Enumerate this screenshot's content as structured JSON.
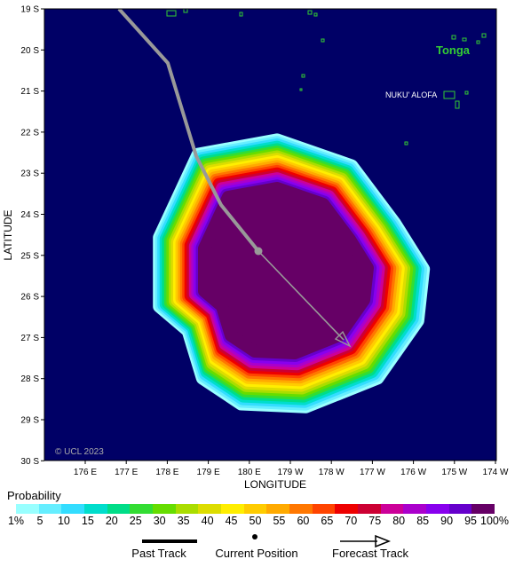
{
  "map": {
    "lat_labels": [
      "19 S",
      "20 S",
      "21 S",
      "22 S",
      "23 S",
      "24 S",
      "25 S",
      "26 S",
      "27 S",
      "28 S",
      "29 S",
      "30 S"
    ],
    "lon_labels": [
      "176 E",
      "177 E",
      "178 E",
      "179 E",
      "180 E",
      "179 W",
      "178 W",
      "177 W",
      "176 W",
      "175 W",
      "174 W"
    ],
    "xlabel": "LONGITUDE",
    "ylabel": "LATITUDE",
    "country_label": "Tonga",
    "capital_label": "NUKU' ALOFA",
    "copyright": "© UCL 2023",
    "ocean_color": "#000066",
    "land_color": "#33cc33",
    "track_color": "#999999"
  },
  "legend": {
    "title": "Probability",
    "ticks": [
      "1%",
      "5",
      "10",
      "15",
      "20",
      "25",
      "30",
      "35",
      "40",
      "45",
      "50",
      "55",
      "60",
      "65",
      "70",
      "75",
      "80",
      "85",
      "90",
      "95",
      "100%"
    ],
    "colors": [
      "#99ffff",
      "#66eeff",
      "#33ddff",
      "#00ddcc",
      "#00dd88",
      "#33dd33",
      "#66dd00",
      "#aadd00",
      "#dddd00",
      "#ffee00",
      "#ffcc00",
      "#ffaa00",
      "#ff7700",
      "#ff4400",
      "#ee0000",
      "#cc0033",
      "#cc0099",
      "#aa00cc",
      "#8800ee",
      "#6600cc",
      "#660066"
    ],
    "past_track_label": "Past Track",
    "current_position_label": "Current Position",
    "forecast_track_label": "Forecast Track"
  }
}
